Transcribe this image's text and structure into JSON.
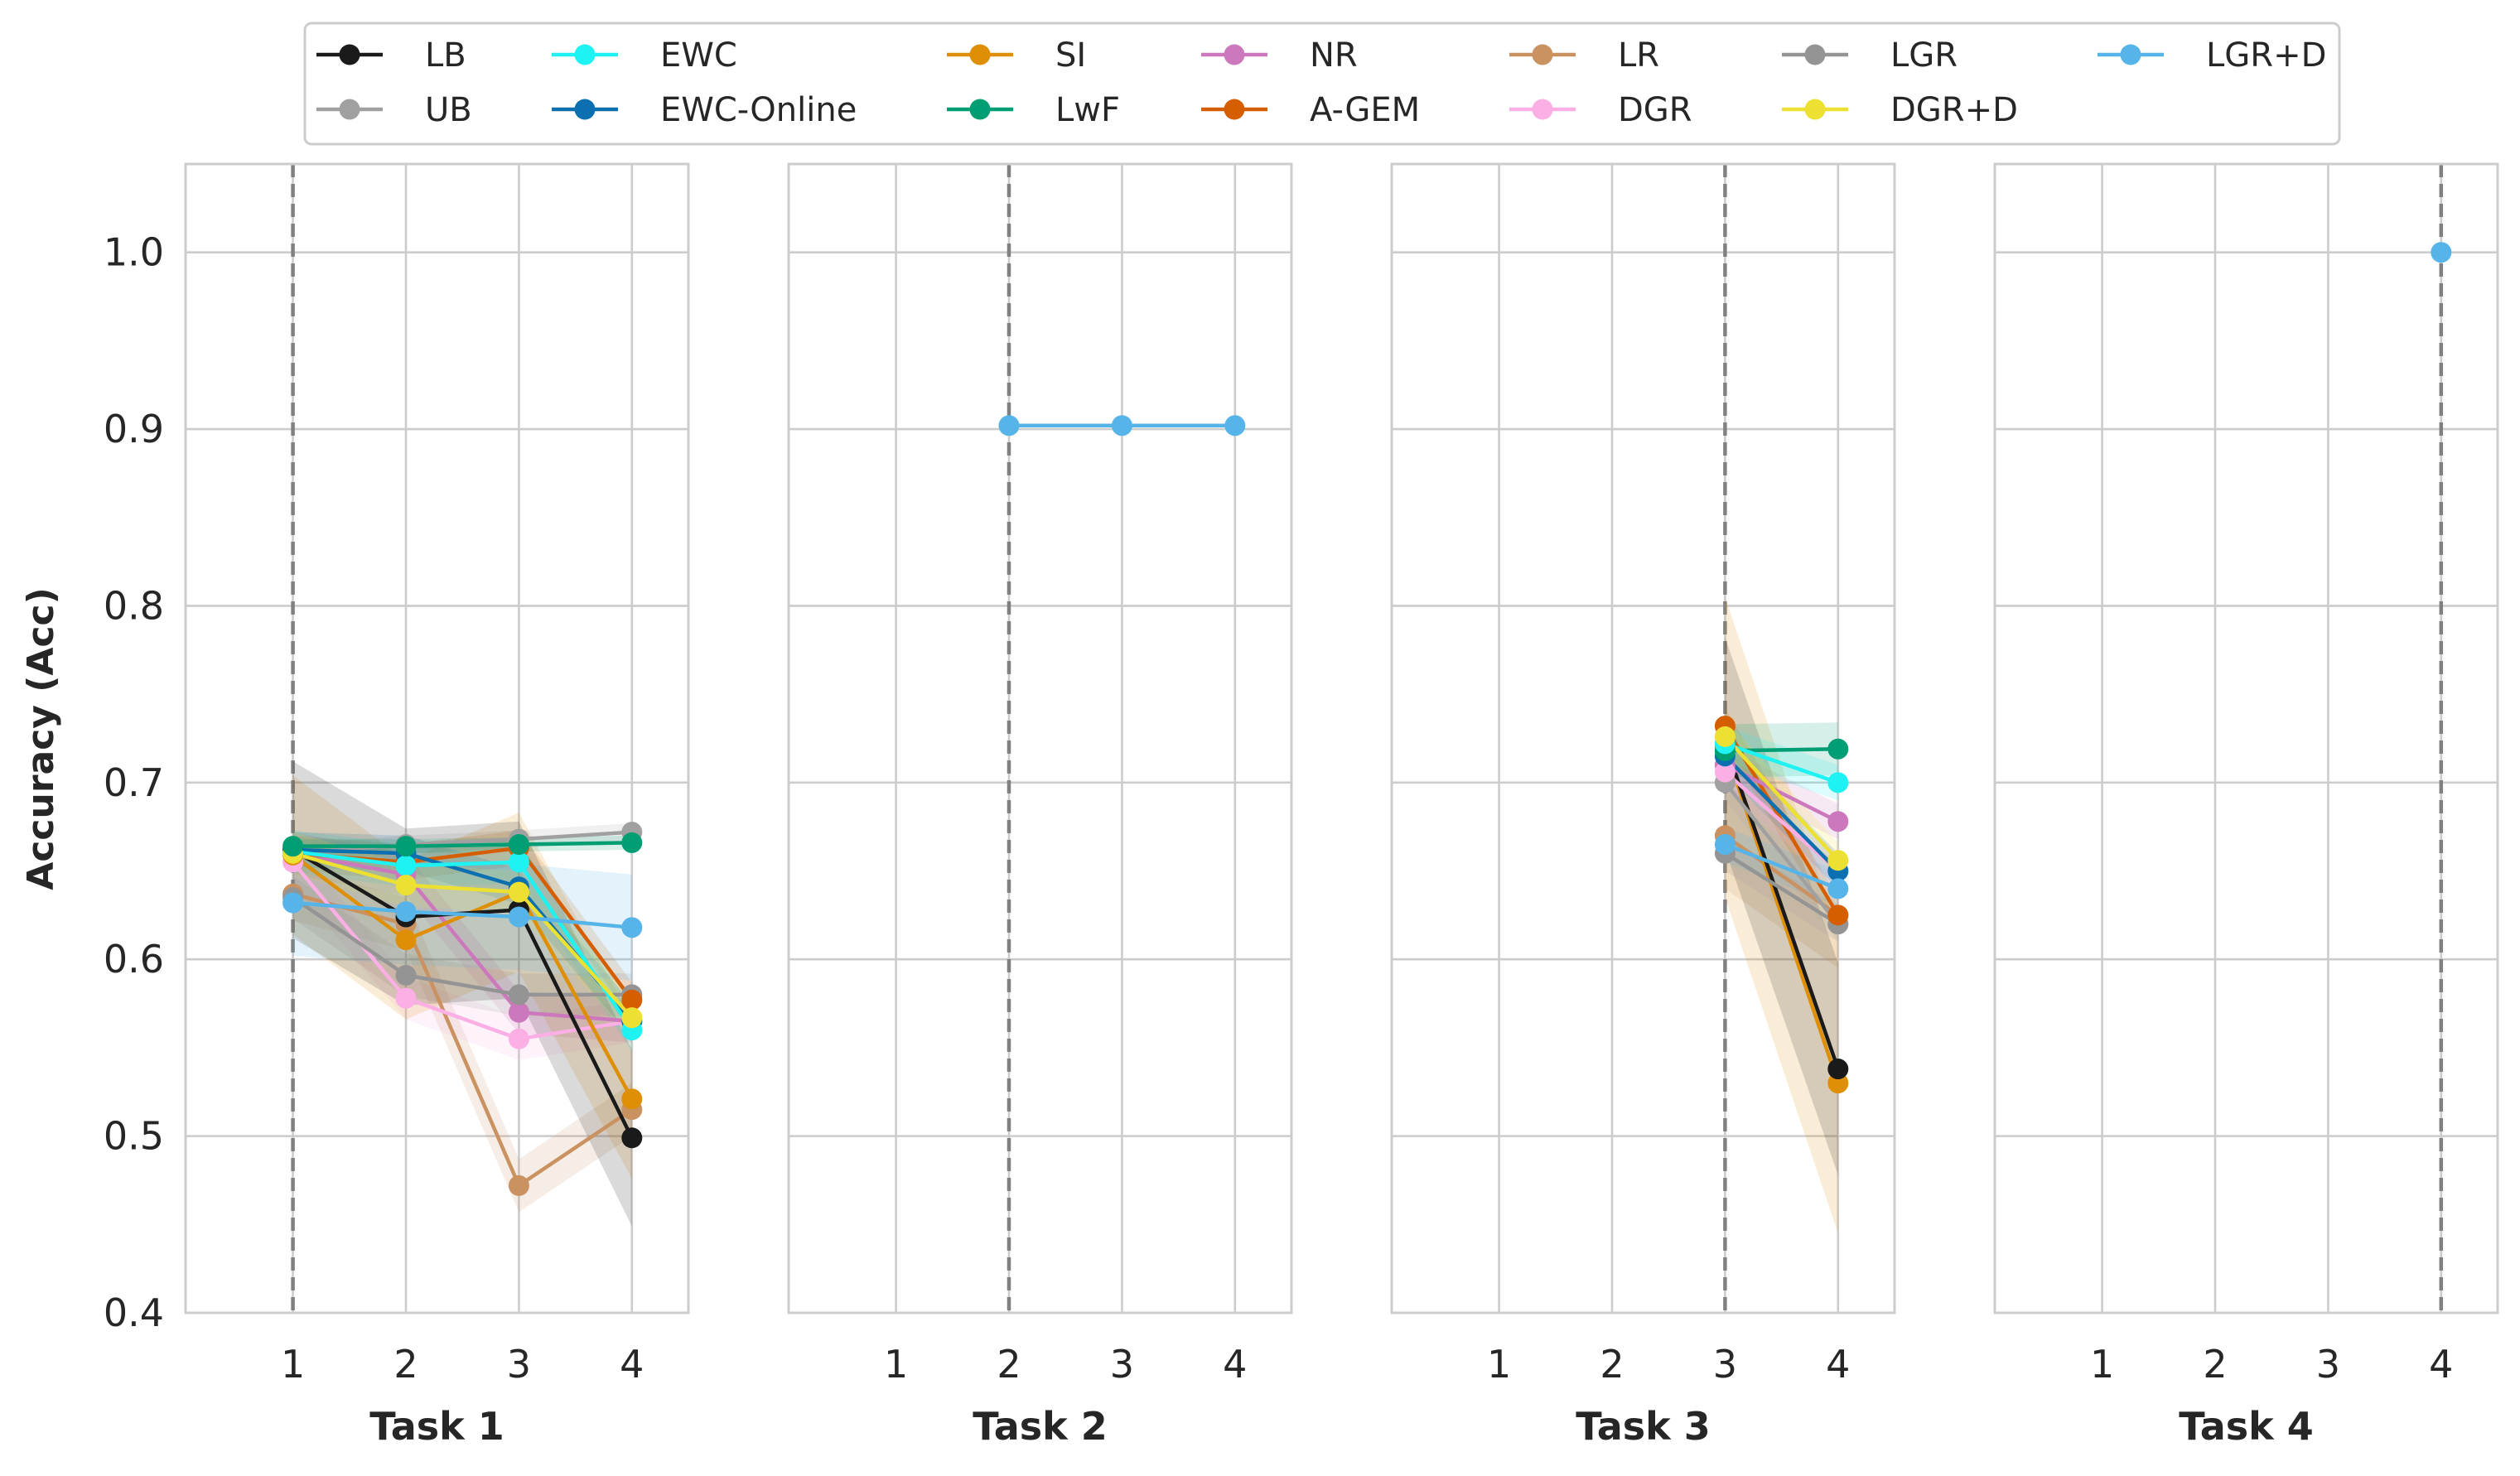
{
  "chart_data": {
    "type": "line",
    "ylabel": "Accuracy (Acc)",
    "ylim": [
      0.4,
      1.05
    ],
    "yticks": [
      0.4,
      0.5,
      0.6,
      0.7,
      0.8,
      0.9,
      1.0
    ],
    "ytick_labels": [
      "0.4",
      "0.5",
      "0.6",
      "0.7",
      "0.8",
      "0.9",
      "1.0"
    ],
    "xticks": [
      1,
      2,
      3,
      4
    ],
    "xtick_labels": [
      "1",
      "2",
      "3",
      "4"
    ],
    "xlim": [
      0.05,
      4.5
    ],
    "grid": true,
    "legend_position": "top",
    "legend": [
      {
        "name": "LB",
        "color": "#1a1a1a"
      },
      {
        "name": "UB",
        "color": "#a0a0a0"
      },
      {
        "name": "EWC",
        "color": "#1ef2f2"
      },
      {
        "name": "EWC-Online",
        "color": "#0c6fb0"
      },
      {
        "name": "SI",
        "color": "#de8f05"
      },
      {
        "name": "LwF",
        "color": "#029e73"
      },
      {
        "name": "NR",
        "color": "#cc78bc"
      },
      {
        "name": "A-GEM",
        "color": "#d55e00"
      },
      {
        "name": "LR",
        "color": "#ca9161"
      },
      {
        "name": "DGR",
        "color": "#fbafe4"
      },
      {
        "name": "LGR",
        "color": "#949494"
      },
      {
        "name": "DGR+D",
        "color": "#ece133"
      },
      {
        "name": "LGR+D",
        "color": "#56b4e9"
      }
    ],
    "panels": [
      {
        "title": "Task 1",
        "task_marker": 1,
        "series": [
          {
            "name": "UB",
            "x": [
              1,
              2,
              3,
              4
            ],
            "y": [
              0.66,
              0.665,
              0.668,
              0.672
            ],
            "band": 0.005
          },
          {
            "name": "LR",
            "x": [
              1,
              2,
              3,
              4
            ],
            "y": [
              0.637,
              0.62,
              0.472,
              0.515
            ],
            "band": 0.015
          },
          {
            "name": "DGR",
            "x": [
              1,
              2,
              3,
              4
            ],
            "y": [
              0.655,
              0.578,
              0.555,
              0.565
            ],
            "band": 0.012
          },
          {
            "name": "NR",
            "x": [
              1,
              2,
              3,
              4
            ],
            "y": [
              0.66,
              0.648,
              0.57,
              0.565
            ],
            "band": 0.012
          },
          {
            "name": "LGR",
            "x": [
              1,
              2,
              3,
              4
            ],
            "y": [
              0.635,
              0.591,
              0.58,
              0.58
            ],
            "band": 0.012
          },
          {
            "name": "A-GEM",
            "x": [
              1,
              2,
              3,
              4
            ],
            "y": [
              0.66,
              0.655,
              0.663,
              0.577
            ],
            "band": 0.01
          },
          {
            "name": "SI",
            "x": [
              1,
              2,
              3,
              4
            ],
            "y": [
              0.659,
              0.611,
              0.638,
              0.521
            ],
            "band": 0.045
          },
          {
            "name": "EWC-Online",
            "x": [
              1,
              2,
              3,
              4
            ],
            "y": [
              0.662,
              0.66,
              0.641,
              0.565
            ],
            "band": 0.01
          },
          {
            "name": "EWC",
            "x": [
              1,
              2,
              3,
              4
            ],
            "y": [
              0.661,
              0.653,
              0.655,
              0.56
            ],
            "band": 0.012
          },
          {
            "name": "LB",
            "x": [
              1,
              2,
              3,
              4
            ],
            "y": [
              0.662,
              0.624,
              0.628,
              0.499
            ],
            "band": 0.05
          },
          {
            "name": "DGR+D",
            "x": [
              1,
              2,
              3,
              4
            ],
            "y": [
              0.66,
              0.642,
              0.638,
              0.567
            ],
            "band": 0.012
          },
          {
            "name": "LwF",
            "x": [
              1,
              2,
              3,
              4
            ],
            "y": [
              0.664,
              0.664,
              0.665,
              0.666
            ],
            "band": 0.004
          },
          {
            "name": "LGR+D",
            "x": [
              1,
              2,
              3,
              4
            ],
            "y": [
              0.632,
              0.627,
              0.624,
              0.618
            ],
            "band": 0.03
          }
        ]
      },
      {
        "title": "Task 2",
        "task_marker": 2,
        "series": [
          {
            "name": "LGR+D",
            "x": [
              2,
              3,
              4
            ],
            "y": [
              0.902,
              0.902,
              0.902
            ],
            "band": 0
          }
        ]
      },
      {
        "title": "Task 3",
        "task_marker": 3,
        "series": [
          {
            "name": "LR",
            "x": [
              3,
              4
            ],
            "y": [
              0.67,
              0.625
            ],
            "band": 0.03
          },
          {
            "name": "SI",
            "x": [
              3,
              4
            ],
            "y": [
              0.72,
              0.53
            ],
            "band": 0.085
          },
          {
            "name": "LB",
            "x": [
              3,
              4
            ],
            "y": [
              0.722,
              0.538
            ],
            "band": 0.06
          },
          {
            "name": "UB",
            "x": [
              3,
              4
            ],
            "y": [
              0.7,
              0.62
            ],
            "band": 0.01
          },
          {
            "name": "LGR",
            "x": [
              3,
              4
            ],
            "y": [
              0.66,
              0.62
            ],
            "band": 0.01
          },
          {
            "name": "A-GEM",
            "x": [
              3,
              4
            ],
            "y": [
              0.732,
              0.625
            ],
            "band": 0.01
          },
          {
            "name": "NR",
            "x": [
              3,
              4
            ],
            "y": [
              0.71,
              0.678
            ],
            "band": 0.01
          },
          {
            "name": "DGR",
            "x": [
              3,
              4
            ],
            "y": [
              0.706,
              0.65
            ],
            "band": 0.01
          },
          {
            "name": "EWC-Online",
            "x": [
              3,
              4
            ],
            "y": [
              0.715,
              0.65
            ],
            "band": 0.01
          },
          {
            "name": "LwF",
            "x": [
              3,
              4
            ],
            "y": [
              0.718,
              0.719
            ],
            "band": 0.015
          },
          {
            "name": "EWC",
            "x": [
              3,
              4
            ],
            "y": [
              0.722,
              0.7
            ],
            "band": 0.01
          },
          {
            "name": "DGR+D",
            "x": [
              3,
              4
            ],
            "y": [
              0.726,
              0.656
            ],
            "band": 0.01
          },
          {
            "name": "LGR+D",
            "x": [
              3,
              4
            ],
            "y": [
              0.665,
              0.64
            ],
            "band": 0.01
          }
        ]
      },
      {
        "title": "Task 4",
        "task_marker": 4,
        "series": [
          {
            "name": "LGR+D",
            "x": [
              4
            ],
            "y": [
              1.0
            ],
            "band": 0
          }
        ]
      }
    ]
  }
}
